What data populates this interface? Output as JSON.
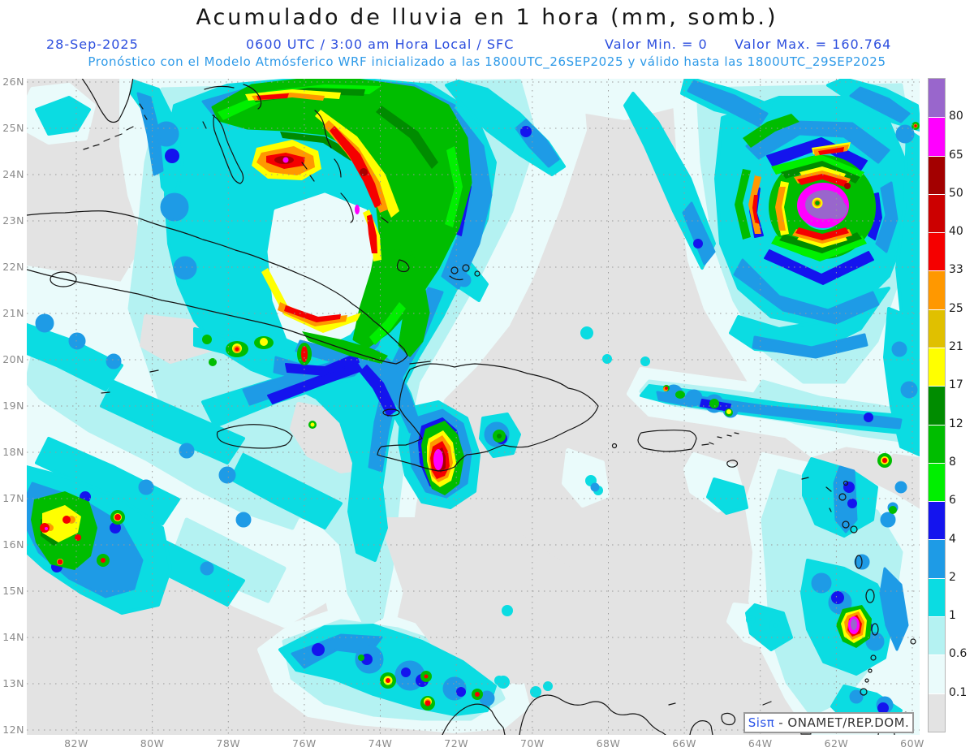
{
  "header": {
    "title": "Acumulado de lluvia en 1 hora (mm, somb.)",
    "date": "28-Sep-2025",
    "time_line": "0600 UTC / 3:00 am Hora Local / SFC",
    "valor_min": "Valor Min. = 0",
    "valor_max": "Valor Max. = 160.764",
    "forecast_line": "Pronóstico con el Modelo Atmósferico WRF inicializado a las 1800UTC_26SEP2025 y válido hasta las  1800UTC_29SEP2025"
  },
  "map": {
    "lat_labels": [
      "26N",
      "25N",
      "24N",
      "23N",
      "22N",
      "21N",
      "20N",
      "19N",
      "18N",
      "17N",
      "16N",
      "15N",
      "14N",
      "13N",
      "12N"
    ],
    "lon_labels": [
      "82W",
      "80W",
      "78W",
      "76W",
      "74W",
      "72W",
      "70W",
      "68W",
      "66W",
      "64W",
      "62W",
      "60W"
    ],
    "axis_color": "#8a8a8a"
  },
  "colorbar": {
    "cells": [
      {
        "color": "#9966cc",
        "label": "80"
      },
      {
        "color": "#ff00ff",
        "label": "65"
      },
      {
        "color": "#a30000",
        "label": "50"
      },
      {
        "color": "#cc0000",
        "label": "40"
      },
      {
        "color": "#f50000",
        "label": "33"
      },
      {
        "color": "#ff9800",
        "label": "25"
      },
      {
        "color": "#e0c000",
        "label": "21"
      },
      {
        "color": "#ffff00",
        "label": "17"
      },
      {
        "color": "#008c00",
        "label": "12"
      },
      {
        "color": "#00bd00",
        "label": "8"
      },
      {
        "color": "#00ef00",
        "label": "6"
      },
      {
        "color": "#1414ee",
        "label": "4"
      },
      {
        "color": "#1e9be6",
        "label": "2"
      },
      {
        "color": "#0bdce2",
        "label": "1"
      },
      {
        "color": "#b4f2f2",
        "label": "0.6"
      },
      {
        "color": "#eafbfb",
        "label": "0.1"
      },
      {
        "color": "#e3e3e3",
        "label": ""
      }
    ]
  },
  "watermark": {
    "logo": "Sisπ",
    "org": "- ONAMET/REP.DOM."
  },
  "chart_data": {
    "type": "heatmap",
    "title": "Acumulado de lluvia en 1 hora (mm, somb.)",
    "units": "mm",
    "value_min": 0,
    "value_max": 160.764,
    "valid_time": "28-Sep-2025 0600 UTC / 3:00 am Hora Local / SFC",
    "model": "WRF inicializado 1800UTC_26SEP2025, válido hasta 1800UTC_29SEP2025",
    "lat_range": [
      "12N",
      "26N"
    ],
    "lon_range": [
      "82W",
      "60W"
    ],
    "scale_levels_mm": [
      0.1,
      0.6,
      1,
      2,
      4,
      6,
      8,
      12,
      17,
      21,
      25,
      33,
      40,
      50,
      65,
      80
    ],
    "scale_colors_low_to_high": [
      "#e3e3e3",
      "#eafbfb",
      "#b4f2f2",
      "#0bdce2",
      "#1e9be6",
      "#1414ee",
      "#00ef00",
      "#00bd00",
      "#008c00",
      "#ffff00",
      "#e0c000",
      "#ff9800",
      "#f50000",
      "#cc0000",
      "#a30000",
      "#ff00ff",
      "#9966cc"
    ],
    "features": [
      {
        "name": "storm-over-bahamas-florida",
        "approx_lon": "78W",
        "approx_lat": "24N",
        "max_shade": "65+"
      },
      {
        "name": "hurricane-atlantic",
        "approx_lon": "62.4W",
        "approx_lat": "23.3N",
        "max_shade": "80+"
      },
      {
        "name": "cell-sw-haiti",
        "approx_lon": "72.5W",
        "approx_lat": "18N",
        "max_shade": "65+"
      },
      {
        "name": "cell-lesser-antilles",
        "approx_lon": "61.5W",
        "approx_lat": "14.3N",
        "max_shade": "80+"
      },
      {
        "name": "cluster-sw-caribbean",
        "approx_lon": "81.5W",
        "approx_lat": "16.2N",
        "max_shade": "40+"
      }
    ]
  }
}
